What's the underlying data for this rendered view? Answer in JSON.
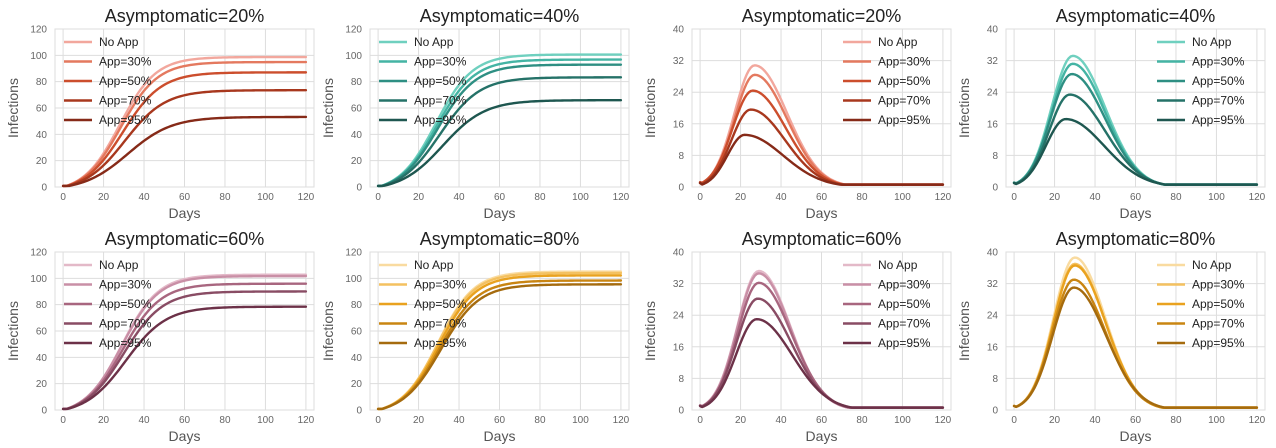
{
  "colors": {
    "red": [
      "#F2A79D",
      "#E4795F",
      "#CC4E2D",
      "#A8381E",
      "#862A18"
    ],
    "teal": [
      "#6FD0BF",
      "#44B4A4",
      "#2E8F83",
      "#257268",
      "#1E5750"
    ],
    "purple": [
      "#E3B9C8",
      "#C98FA6",
      "#A8667F",
      "#894C64",
      "#6C3148"
    ],
    "gold": [
      "#F9DBA0",
      "#F4C160",
      "#E9A21F",
      "#C98512",
      "#A56B0E"
    ],
    "grid": "#DDDDDD",
    "tick": "#666666"
  },
  "series_names": [
    "No App",
    "App=30%",
    "App=50%",
    "App=70%",
    "App=95%"
  ],
  "chart_data": [
    {
      "type": "line",
      "title": "Asymptomatic=20%",
      "xlabel": "Days",
      "ylabel": "Infections",
      "palette": "red",
      "xlim": [
        -4,
        124
      ],
      "ylim": [
        0,
        120
      ],
      "xticks": [
        0,
        20,
        40,
        60,
        80,
        100,
        120
      ],
      "yticks": [
        0,
        20,
        40,
        60,
        80,
        100,
        120
      ],
      "legend": "top-left",
      "grid": true,
      "cumulative": true,
      "series": [
        {
          "name": "No App",
          "peak": 103,
          "curve": {
            "t0": 28,
            "k": 0.112
          }
        },
        {
          "name": "App=30%",
          "peak": 99,
          "curve": {
            "t0": 28.5,
            "k": 0.11
          }
        },
        {
          "name": "App=50%",
          "peak": 91,
          "curve": {
            "t0": 29.5,
            "k": 0.105
          }
        },
        {
          "name": "App=70%",
          "peak": 77,
          "curve": {
            "t0": 30.5,
            "k": 0.1
          }
        },
        {
          "name": "App=95%",
          "peak": 56,
          "curve": {
            "t0": 32,
            "k": 0.092
          }
        }
      ]
    },
    {
      "type": "line",
      "title": "Asymptomatic=40%",
      "xlabel": "Days",
      "ylabel": "Infections",
      "palette": "teal",
      "xlim": [
        -4,
        124
      ],
      "ylim": [
        0,
        120
      ],
      "xticks": [
        0,
        20,
        40,
        60,
        80,
        100,
        120
      ],
      "yticks": [
        0,
        20,
        40,
        60,
        80,
        100,
        120
      ],
      "legend": "top-left",
      "grid": true,
      "cumulative": true,
      "series": [
        {
          "name": "No App",
          "peak": 105,
          "curve": {
            "t0": 28.5,
            "k": 0.11
          }
        },
        {
          "name": "App=30%",
          "peak": 101,
          "curve": {
            "t0": 29,
            "k": 0.108
          }
        },
        {
          "name": "App=50%",
          "peak": 97,
          "curve": {
            "t0": 29.5,
            "k": 0.106
          }
        },
        {
          "name": "App=70%",
          "peak": 87,
          "curve": {
            "t0": 30.5,
            "k": 0.102
          }
        },
        {
          "name": "App=95%",
          "peak": 69,
          "curve": {
            "t0": 32,
            "k": 0.096
          }
        }
      ]
    },
    {
      "type": "line",
      "title": "Asymptomatic=20%",
      "xlabel": "Days",
      "ylabel": "Infections",
      "palette": "red",
      "xlim": [
        -4,
        124
      ],
      "ylim": [
        0,
        40
      ],
      "xticks": [
        0,
        20,
        40,
        60,
        80,
        100,
        120
      ],
      "yticks": [
        0,
        8,
        16,
        24,
        32,
        40
      ],
      "legend": "top-right",
      "grid": true,
      "cumulative": false,
      "series": [
        {
          "name": "No App",
          "peak": 30.8,
          "curve": {
            "tp": 27,
            "sl": 10,
            "sr": 16
          }
        },
        {
          "name": "App=30%",
          "peak": 28.4,
          "curve": {
            "tp": 27,
            "sl": 10,
            "sr": 16
          }
        },
        {
          "name": "App=50%",
          "peak": 24.4,
          "curve": {
            "tp": 26,
            "sl": 10,
            "sr": 16.5
          }
        },
        {
          "name": "App=70%",
          "peak": 19.6,
          "curve": {
            "tp": 25,
            "sl": 9.5,
            "sr": 17
          }
        },
        {
          "name": "App=95%",
          "peak": 13.2,
          "curve": {
            "tp": 22,
            "sl": 8.5,
            "sr": 19
          }
        }
      ]
    },
    {
      "type": "line",
      "title": "Asymptomatic=40%",
      "xlabel": "Days",
      "ylabel": "Infections",
      "palette": "teal",
      "xlim": [
        -4,
        124
      ],
      "ylim": [
        0,
        40
      ],
      "xticks": [
        0,
        20,
        40,
        60,
        80,
        100,
        120
      ],
      "yticks": [
        0,
        8,
        16,
        24,
        32,
        40
      ],
      "legend": "top-right",
      "grid": true,
      "cumulative": false,
      "series": [
        {
          "name": "No App",
          "peak": 33.2,
          "curve": {
            "tp": 29,
            "sl": 10.5,
            "sr": 16
          }
        },
        {
          "name": "App=30%",
          "peak": 31.2,
          "curve": {
            "tp": 29,
            "sl": 10.5,
            "sr": 16
          }
        },
        {
          "name": "App=50%",
          "peak": 28.6,
          "curve": {
            "tp": 28.5,
            "sl": 10.5,
            "sr": 16.5
          }
        },
        {
          "name": "App=70%",
          "peak": 23.4,
          "curve": {
            "tp": 27.5,
            "sl": 10.2,
            "sr": 17.5
          }
        },
        {
          "name": "App=95%",
          "peak": 17.2,
          "curve": {
            "tp": 25.5,
            "sl": 9.8,
            "sr": 19
          }
        }
      ]
    },
    {
      "type": "line",
      "title": "Asymptomatic=60%",
      "xlabel": "Days",
      "ylabel": "Infections",
      "palette": "purple",
      "xlim": [
        -4,
        124
      ],
      "ylim": [
        0,
        120
      ],
      "xticks": [
        0,
        20,
        40,
        60,
        80,
        100,
        120
      ],
      "yticks": [
        0,
        20,
        40,
        60,
        80,
        100,
        120
      ],
      "legend": "top-left",
      "grid": true,
      "cumulative": true,
      "series": [
        {
          "name": "No App",
          "peak": 107,
          "curve": {
            "t0": 29,
            "k": 0.11
          }
        },
        {
          "name": "App=30%",
          "peak": 106,
          "curve": {
            "t0": 29,
            "k": 0.109
          }
        },
        {
          "name": "App=50%",
          "peak": 100,
          "curve": {
            "t0": 29.5,
            "k": 0.107
          }
        },
        {
          "name": "App=70%",
          "peak": 94,
          "curve": {
            "t0": 30,
            "k": 0.104
          }
        },
        {
          "name": "App=95%",
          "peak": 82,
          "curve": {
            "t0": 31,
            "k": 0.1
          }
        }
      ]
    },
    {
      "type": "line",
      "title": "Asymptomatic=80%",
      "xlabel": "Days",
      "ylabel": "Infections",
      "palette": "gold",
      "xlim": [
        -4,
        124
      ],
      "ylim": [
        0,
        120
      ],
      "xticks": [
        0,
        20,
        40,
        60,
        80,
        100,
        120
      ],
      "yticks": [
        0,
        20,
        40,
        60,
        80,
        100,
        120
      ],
      "legend": "top-left",
      "grid": true,
      "cumulative": true,
      "series": [
        {
          "name": "No App",
          "peak": 109,
          "curve": {
            "t0": 29.5,
            "k": 0.112
          }
        },
        {
          "name": "App=30%",
          "peak": 108,
          "curve": {
            "t0": 29.5,
            "k": 0.111
          }
        },
        {
          "name": "App=50%",
          "peak": 106,
          "curve": {
            "t0": 30,
            "k": 0.11
          }
        },
        {
          "name": "App=70%",
          "peak": 102,
          "curve": {
            "t0": 30.5,
            "k": 0.108
          }
        },
        {
          "name": "App=95%",
          "peak": 99,
          "curve": {
            "t0": 31,
            "k": 0.106
          }
        }
      ]
    },
    {
      "type": "line",
      "title": "Asymptomatic=60%",
      "xlabel": "Days",
      "ylabel": "Infections",
      "palette": "purple",
      "xlim": [
        -4,
        124
      ],
      "ylim": [
        0,
        40
      ],
      "xticks": [
        0,
        20,
        40,
        60,
        80,
        100,
        120
      ],
      "yticks": [
        0,
        8,
        16,
        24,
        32,
        40
      ],
      "legend": "top-right",
      "grid": true,
      "cumulative": false,
      "series": [
        {
          "name": "No App",
          "peak": 35.2,
          "curve": {
            "tp": 29,
            "sl": 10.5,
            "sr": 15.5
          }
        },
        {
          "name": "App=30%",
          "peak": 34.6,
          "curve": {
            "tp": 29,
            "sl": 10.5,
            "sr": 15.5
          }
        },
        {
          "name": "App=50%",
          "peak": 32.2,
          "curve": {
            "tp": 29,
            "sl": 10.5,
            "sr": 16
          }
        },
        {
          "name": "App=70%",
          "peak": 28.2,
          "curve": {
            "tp": 28.5,
            "sl": 10.5,
            "sr": 16.5
          }
        },
        {
          "name": "App=95%",
          "peak": 23.0,
          "curve": {
            "tp": 28,
            "sl": 10.3,
            "sr": 17.5
          }
        }
      ]
    },
    {
      "type": "line",
      "title": "Asymptomatic=80%",
      "xlabel": "Days",
      "ylabel": "Infections",
      "palette": "gold",
      "xlim": [
        -4,
        124
      ],
      "ylim": [
        0,
        40
      ],
      "xticks": [
        0,
        20,
        40,
        60,
        80,
        100,
        120
      ],
      "yticks": [
        0,
        8,
        16,
        24,
        32,
        40
      ],
      "legend": "top-right",
      "grid": true,
      "cumulative": false,
      "series": [
        {
          "name": "No App",
          "peak": 38.6,
          "curve": {
            "tp": 30,
            "sl": 10.5,
            "sr": 15
          }
        },
        {
          "name": "App=30%",
          "peak": 37.0,
          "curve": {
            "tp": 30,
            "sl": 10.5,
            "sr": 15
          }
        },
        {
          "name": "App=50%",
          "peak": 36.6,
          "curve": {
            "tp": 30,
            "sl": 10.5,
            "sr": 15.2
          }
        },
        {
          "name": "App=70%",
          "peak": 33.0,
          "curve": {
            "tp": 29.5,
            "sl": 10.5,
            "sr": 15.5
          }
        },
        {
          "name": "App=95%",
          "peak": 31.0,
          "curve": {
            "tp": 29.5,
            "sl": 10.5,
            "sr": 16
          }
        }
      ]
    }
  ]
}
